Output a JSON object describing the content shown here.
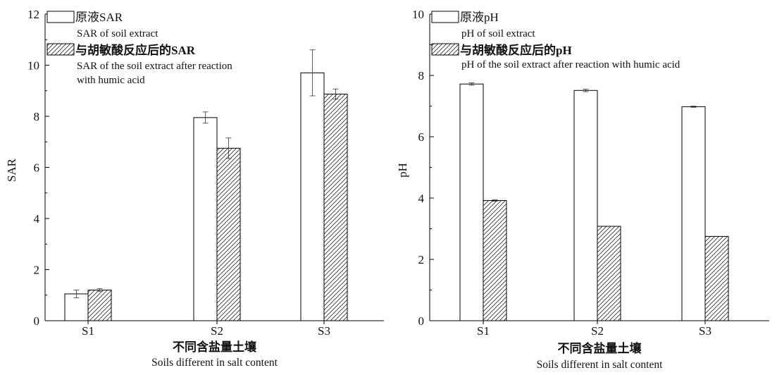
{
  "chart_data": [
    {
      "type": "bar",
      "categories": [
        "S1",
        "S2",
        "S3"
      ],
      "series": [
        {
          "name": "原液SAR",
          "name_en": "SAR of soil extract",
          "values": [
            1.05,
            7.95,
            9.7
          ],
          "errors": [
            0.15,
            0.22,
            0.9
          ],
          "fill": "open"
        },
        {
          "name": "与胡敏酸反应后的SAR",
          "name_en": "SAR of the soil extract after reaction with humic acid",
          "values": [
            1.2,
            6.75,
            8.87
          ],
          "errors": [
            0.06,
            0.4,
            0.2
          ],
          "fill": "hatched"
        }
      ],
      "xlabel": "不同含盐量土壤",
      "xlabel_en": "Soils different in salt content",
      "ylabel": "SAR",
      "ylim": [
        0,
        12
      ],
      "yticks": [
        0,
        2,
        4,
        6,
        8,
        10,
        12
      ],
      "legend_position": "top-left",
      "grid": false
    },
    {
      "type": "bar",
      "categories": [
        "S1",
        "S2",
        "S3"
      ],
      "series": [
        {
          "name": "原液pH",
          "name_en": "pH of soil extract",
          "values": [
            7.72,
            7.51,
            6.98
          ],
          "errors": [
            0.04,
            0.04,
            0.02
          ],
          "fill": "open"
        },
        {
          "name": "与胡敏酸反应后的pH",
          "name_en": "pH of the soil extract after reaction with humic acid",
          "values": [
            3.92,
            3.08,
            2.75
          ],
          "errors": [
            0.02,
            0,
            0
          ],
          "fill": "hatched"
        }
      ],
      "xlabel": "不同含盐量土壤",
      "xlabel_en": "Soils different in salt content",
      "ylabel": "pH",
      "ylim": [
        0,
        10
      ],
      "yticks": [
        0,
        2,
        4,
        6,
        8,
        10
      ],
      "legend_position": "top-left",
      "grid": false
    }
  ]
}
